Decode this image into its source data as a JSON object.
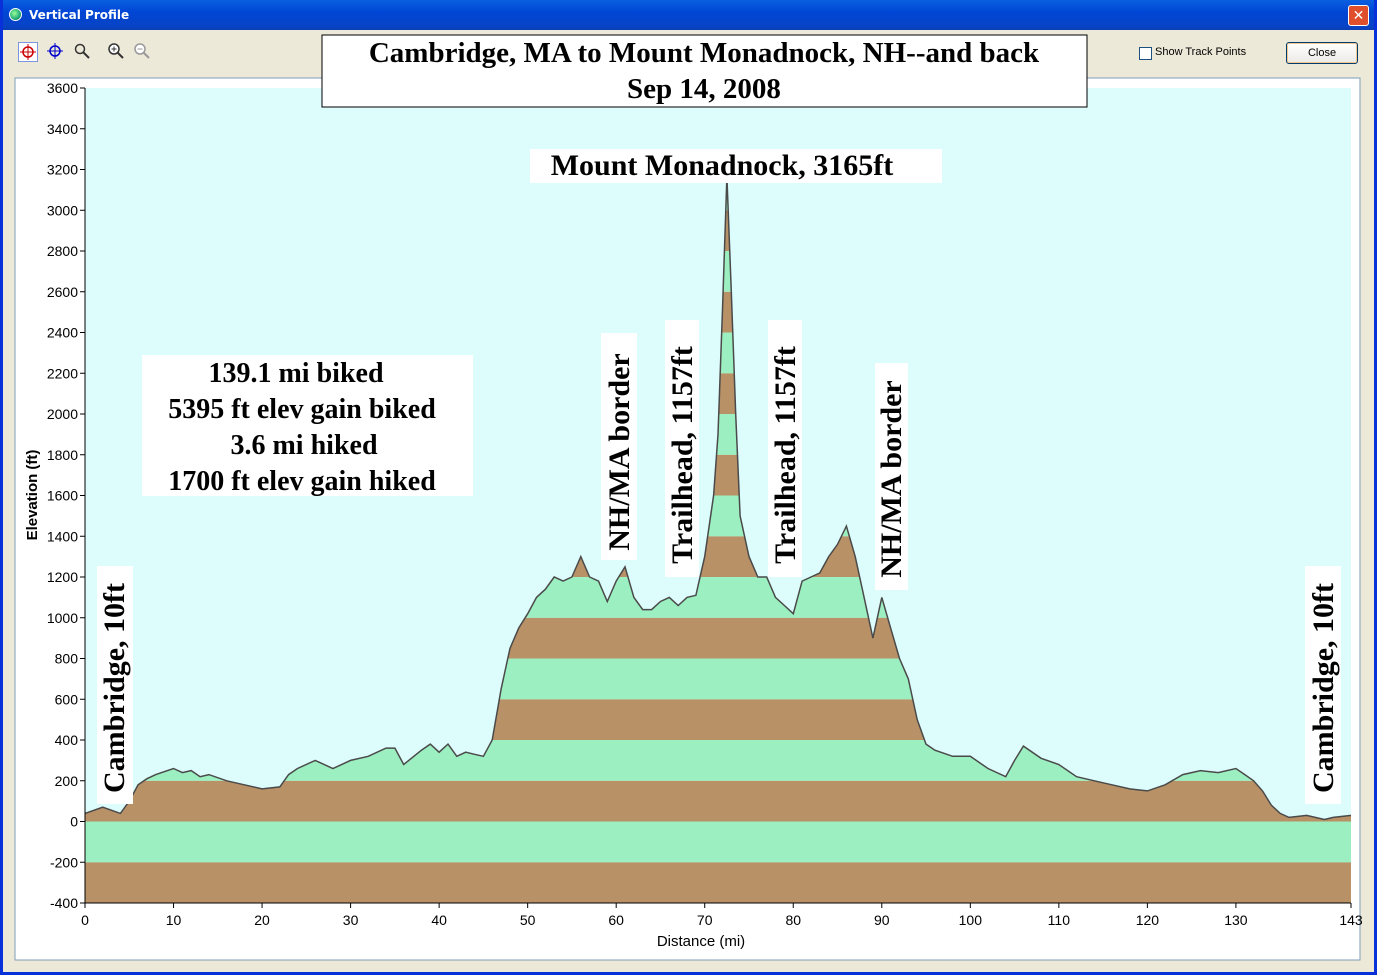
{
  "window": {
    "title": "Vertical Profile",
    "close_glyph": "✕"
  },
  "toolbar": {
    "tools": [
      "select-icon",
      "pan-icon",
      "zoom-box-icon",
      "zoom-in-icon",
      "zoom-out-icon"
    ],
    "show_track_points_label": "Show Track Points",
    "show_track_points_checked": false,
    "close_label": "Close"
  },
  "chart_data": {
    "type": "area",
    "title": "Cambridge, MA to Mount Monadnock, NH--and back",
    "subtitle": "Sep 14, 2008",
    "xlabel": "Distance   (mi)",
    "ylabel": "Elevation (ft)",
    "xlim": [
      0,
      143
    ],
    "ylim": [
      -400,
      3600
    ],
    "x_ticks": [
      0,
      10,
      20,
      30,
      40,
      50,
      60,
      70,
      80,
      90,
      100,
      110,
      120,
      130,
      143
    ],
    "y_ticks": [
      -400,
      -200,
      0,
      200,
      400,
      600,
      800,
      1000,
      1200,
      1400,
      1600,
      1800,
      2000,
      2200,
      2400,
      2600,
      2800,
      3000,
      3200,
      3400,
      3600
    ],
    "band_colors": {
      "green": "#9CEFC0",
      "brown": "#B89166",
      "background": "#DDFDFD",
      "line": "#4A4A4A"
    },
    "stats": [
      "139.1 mi biked",
      "5395 ft elev gain biked",
      "3.6 mi hiked",
      "1700 ft elev gain hiked"
    ],
    "annotations": [
      {
        "text": "Mount Monadnock, 3165ft",
        "x": 72.5,
        "y": 3165,
        "orientation": "horizontal"
      },
      {
        "text": "Cambridge, 10ft",
        "x": 3,
        "y": 10,
        "orientation": "vertical"
      },
      {
        "text": "NH/MA border",
        "x": 60,
        "y": 1250,
        "orientation": "vertical"
      },
      {
        "text": "Trailhead, 1157ft",
        "x": 67,
        "y": 1157,
        "orientation": "vertical"
      },
      {
        "text": "Trailhead, 1157ft",
        "x": 79,
        "y": 1157,
        "orientation": "vertical"
      },
      {
        "text": "NH/MA border",
        "x": 91,
        "y": 1100,
        "orientation": "vertical"
      },
      {
        "text": "Cambridge, 10ft",
        "x": 140.5,
        "y": 10,
        "orientation": "vertical"
      }
    ],
    "series": [
      {
        "x": [
          0,
          2,
          4,
          5,
          6,
          7,
          8,
          10,
          11,
          12,
          13,
          14,
          16,
          18,
          20,
          22,
          23,
          24,
          26,
          28,
          30,
          32,
          34,
          35,
          36,
          38,
          39,
          40,
          41,
          42,
          43,
          44,
          45,
          46,
          47,
          48,
          49,
          50,
          51,
          52,
          53,
          54,
          55,
          56,
          57,
          58,
          59,
          60,
          61,
          62,
          63,
          64,
          65,
          66,
          67,
          68,
          69,
          70,
          71,
          71.5,
          72,
          72.5,
          73,
          73.5,
          74,
          75,
          76,
          77,
          78,
          79,
          80,
          81,
          82,
          83,
          84,
          85,
          86,
          87,
          88,
          89,
          90,
          91,
          92,
          93,
          94,
          95,
          96,
          98,
          100,
          102,
          104,
          105,
          106,
          108,
          110,
          112,
          114,
          116,
          118,
          120,
          122,
          124,
          126,
          128,
          130,
          131,
          132,
          133,
          134,
          135,
          136,
          138,
          140,
          141,
          143
        ],
        "y": [
          40,
          70,
          40,
          100,
          180,
          210,
          230,
          260,
          240,
          250,
          220,
          230,
          200,
          180,
          160,
          170,
          230,
          260,
          300,
          260,
          300,
          320,
          360,
          360,
          280,
          350,
          380,
          340,
          380,
          320,
          340,
          330,
          320,
          400,
          650,
          850,
          950,
          1020,
          1100,
          1140,
          1200,
          1180,
          1200,
          1300,
          1200,
          1180,
          1080,
          1180,
          1250,
          1100,
          1040,
          1040,
          1080,
          1100,
          1060,
          1100,
          1110,
          1300,
          1600,
          1900,
          2500,
          3165,
          2600,
          2000,
          1500,
          1300,
          1200,
          1200,
          1100,
          1060,
          1020,
          1180,
          1200,
          1220,
          1300,
          1360,
          1450,
          1300,
          1100,
          900,
          1100,
          950,
          800,
          700,
          500,
          380,
          350,
          320,
          320,
          260,
          220,
          300,
          370,
          310,
          280,
          220,
          200,
          180,
          160,
          150,
          180,
          230,
          250,
          240,
          260,
          230,
          200,
          150,
          80,
          40,
          20,
          30,
          10,
          20,
          30
        ]
      }
    ]
  }
}
